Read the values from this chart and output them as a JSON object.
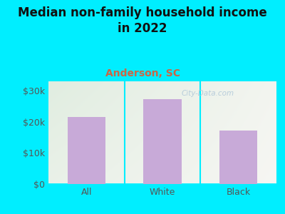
{
  "categories": [
    "All",
    "White",
    "Black"
  ],
  "values": [
    21500,
    27200,
    17200
  ],
  "bar_color": "#c8aad8",
  "title_line1": "Median non-family household income",
  "title_line2": "in 2022",
  "subtitle": "Anderson, SC",
  "subtitle_color": "#cc6644",
  "title_color": "#111111",
  "bg_color": "#00eeff",
  "yticks": [
    0,
    10000,
    20000,
    30000
  ],
  "ytick_labels": [
    "$0",
    "$10k",
    "$20k",
    "$30k"
  ],
  "ylim": [
    0,
    33000
  ],
  "watermark": "City-Data.com",
  "axis_label_color": "#555555",
  "title_fontsize": 12,
  "subtitle_fontsize": 10,
  "tick_fontsize": 9
}
